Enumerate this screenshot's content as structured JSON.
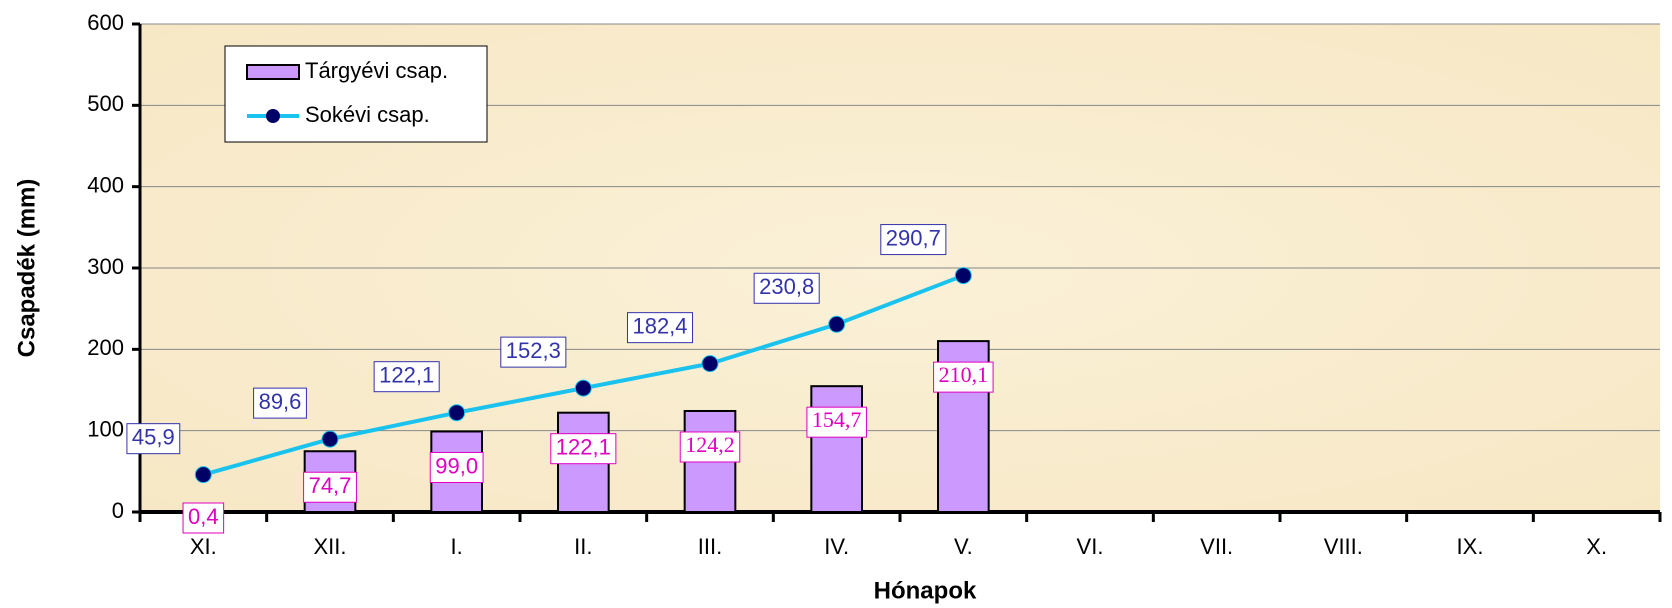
{
  "chart_data": {
    "type": "bar+line",
    "x_label": "Hónapok",
    "y_label": "Csapadék (mm)",
    "categories": [
      "XI.",
      "XII.",
      "I.",
      "II.",
      "III.",
      "IV.",
      "V.",
      "VI.",
      "VII.",
      "VIII.",
      "IX.",
      "X."
    ],
    "series": [
      {
        "name": "Tárgyévi csap.",
        "type": "bar",
        "color": "#cc99ff",
        "label_color": "#e000c0",
        "values": [
          0.4,
          74.7,
          99.0,
          122.1,
          124.2,
          154.7,
          210.1,
          null,
          null,
          null,
          null,
          null
        ],
        "value_labels": [
          "0,4",
          "74,7",
          "99,0",
          "122,1",
          "124,2",
          "154,7",
          "210,1",
          null,
          null,
          null,
          null,
          null
        ]
      },
      {
        "name": "Sokévi csap.",
        "type": "line",
        "color": "#19c3ee",
        "marker_color": "#000066",
        "label_color": "#3333aa",
        "values": [
          45.9,
          89.6,
          122.1,
          152.3,
          182.4,
          230.8,
          290.7,
          null,
          null,
          null,
          null,
          null
        ],
        "value_labels": [
          "45,9",
          "89,6",
          "122,1",
          "152,3",
          "182,4",
          "230,8",
          "290,7",
          null,
          null,
          null,
          null,
          null
        ]
      }
    ],
    "ylim": [
      0,
      600
    ],
    "yticks": [
      0,
      100,
      200,
      300,
      400,
      500,
      600
    ],
    "grid": true,
    "legend": "upper left"
  }
}
